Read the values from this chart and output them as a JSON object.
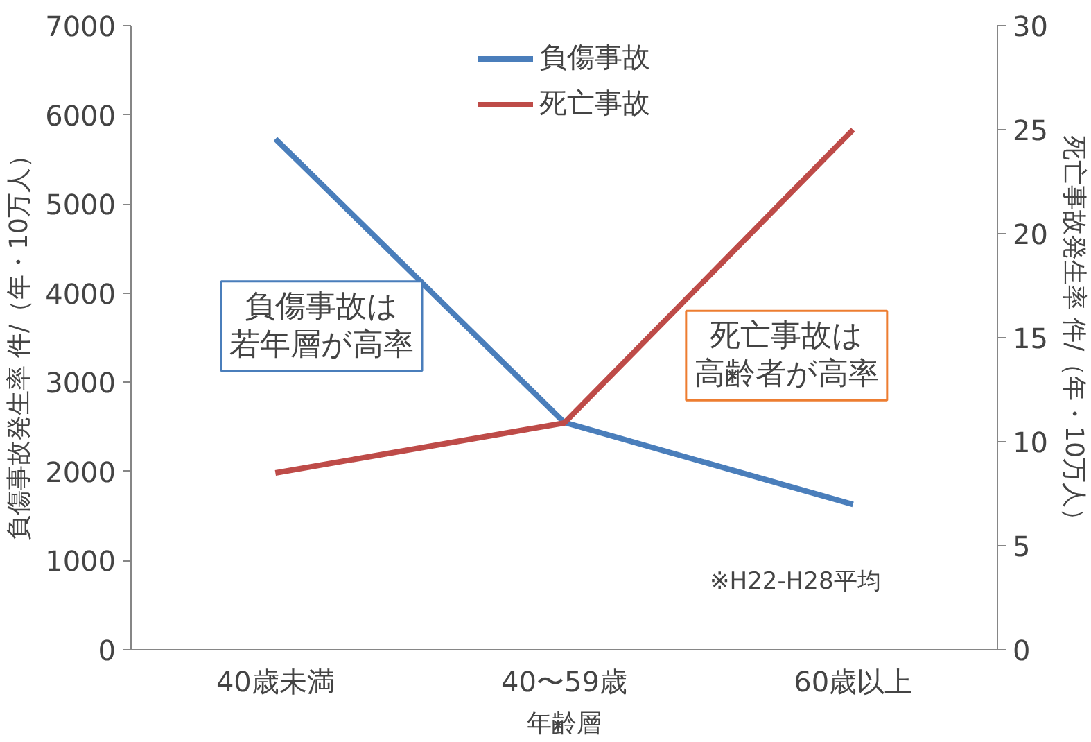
{
  "chart_data": {
    "type": "line",
    "categories": [
      "40歳未満",
      "40〜59歳",
      "60歳以上"
    ],
    "xlabel": "年齢層",
    "ylabel": "負傷事故発生率  件/（年・10万人）",
    "y2label": "死亡事故発生率  件/（年・10万人）",
    "series": [
      {
        "name": "負傷事故",
        "color": "#4a7ebb",
        "values": [
          5730,
          2550,
          1630
        ]
      },
      {
        "name": "死亡事故",
        "color": "#be4b48",
        "values": [
          8.5,
          10.9,
          25.0
        ],
        "axis": "y2"
      }
    ],
    "ylim": [
      0,
      7000
    ],
    "yticks": [
      0,
      1000,
      2000,
      3000,
      4000,
      5000,
      6000,
      7000
    ],
    "y2lim": [
      0,
      30
    ],
    "y2ticks": [
      0,
      5,
      10,
      15,
      20,
      25,
      30
    ],
    "annotations": [
      "負傷事故は若年層が高率",
      "死亡事故は高齢者が高率",
      "※H22-H28平均"
    ],
    "legend": "top",
    "grid": false,
    "marker": "none",
    "line_style": "solid"
  }
}
